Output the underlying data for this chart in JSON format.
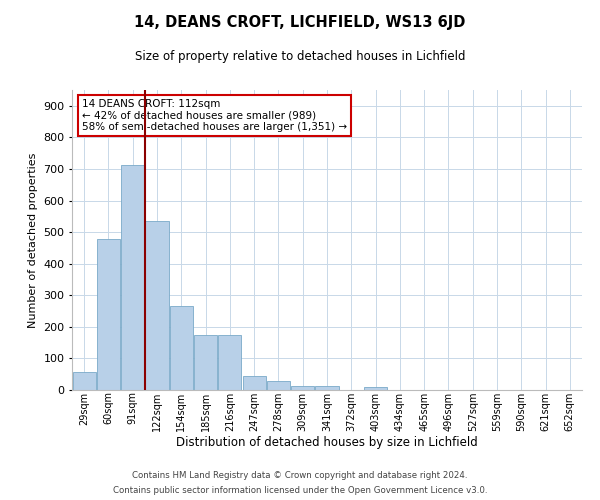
{
  "title": "14, DEANS CROFT, LICHFIELD, WS13 6JD",
  "subtitle": "Size of property relative to detached houses in Lichfield",
  "xlabel": "Distribution of detached houses by size in Lichfield",
  "ylabel": "Number of detached properties",
  "annotation_line1": "14 DEANS CROFT: 112sqm",
  "annotation_line2": "← 42% of detached houses are smaller (989)",
  "annotation_line3": "58% of semi-detached houses are larger (1,351) →",
  "property_size_bin": 3,
  "property_line_color": "#8B0000",
  "bar_color": "#b8d0e8",
  "bar_edge_color": "#7aaac8",
  "categories": [
    "29sqm",
    "60sqm",
    "91sqm",
    "122sqm",
    "154sqm",
    "185sqm",
    "216sqm",
    "247sqm",
    "278sqm",
    "309sqm",
    "341sqm",
    "372sqm",
    "403sqm",
    "434sqm",
    "465sqm",
    "496sqm",
    "527sqm",
    "559sqm",
    "590sqm",
    "621sqm",
    "652sqm"
  ],
  "values": [
    58,
    478,
    714,
    535,
    265,
    175,
    174,
    44,
    28,
    14,
    12,
    0,
    8,
    0,
    0,
    0,
    0,
    0,
    0,
    0,
    0
  ],
  "ylim": [
    0,
    950
  ],
  "yticks": [
    0,
    100,
    200,
    300,
    400,
    500,
    600,
    700,
    800,
    900
  ],
  "background_color": "#ffffff",
  "grid_color": "#c8d8e8",
  "footer_line1": "Contains HM Land Registry data © Crown copyright and database right 2024.",
  "footer_line2": "Contains public sector information licensed under the Open Government Licence v3.0."
}
